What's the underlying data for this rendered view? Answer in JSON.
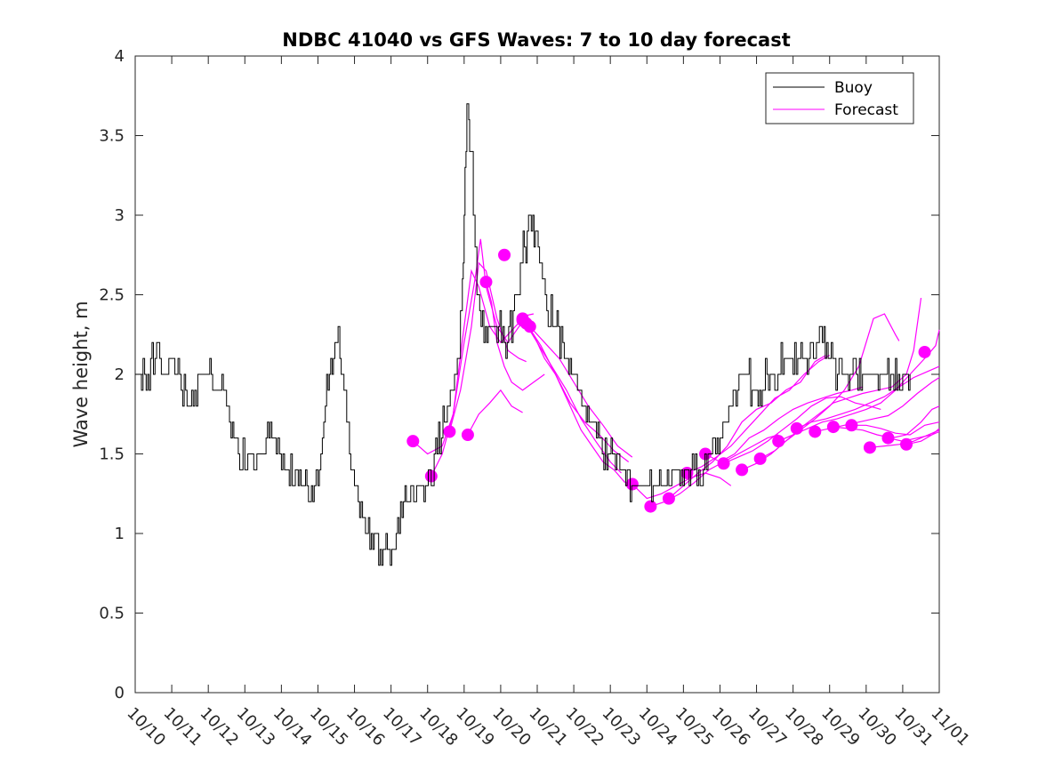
{
  "chart_data": {
    "type": "line",
    "title": "NDBC 41040 vs GFS Waves: 7 to 10 day forecast",
    "xlabel": "",
    "ylabel": "Wave height, m",
    "xlim": [
      10.0,
      32.0
    ],
    "ylim": [
      0,
      4
    ],
    "x_tick_values": [
      10,
      11,
      12,
      13,
      14,
      15,
      16,
      17,
      18,
      19,
      20,
      21,
      22,
      23,
      24,
      25,
      26,
      27,
      28,
      29,
      30,
      31,
      32
    ],
    "x_tick_labels": [
      "10/10",
      "10/11",
      "10/12",
      "10/13",
      "10/14",
      "10/15",
      "10/16",
      "10/17",
      "10/18",
      "10/19",
      "10/20",
      "10/21",
      "10/22",
      "10/23",
      "10/24",
      "10/25",
      "10/26",
      "10/27",
      "10/28",
      "10/29",
      "10/30",
      "10/31",
      "11/01"
    ],
    "y_ticks": [
      0,
      0.5,
      1,
      1.5,
      2,
      2.5,
      3,
      3.5,
      4
    ],
    "y_tick_labels": [
      "0",
      "0.5",
      "1",
      "1.5",
      "2",
      "2.5",
      "3",
      "3.5",
      "4"
    ],
    "grid": false,
    "legend": {
      "position": "top-right",
      "entries": [
        "Buoy",
        "Forecast"
      ]
    },
    "colors": {
      "buoy": "#000000",
      "forecast": "#ff00ff"
    },
    "buoy": {
      "name": "Buoy",
      "points": [
        [
          10.0,
          2.0
        ],
        [
          10.3,
          2.0
        ],
        [
          10.5,
          2.1
        ],
        [
          10.8,
          2.0
        ],
        [
          11.0,
          2.1
        ],
        [
          11.3,
          1.9
        ],
        [
          11.5,
          1.8
        ],
        [
          11.8,
          2.0
        ],
        [
          12.0,
          2.0
        ],
        [
          12.2,
          1.9
        ],
        [
          12.5,
          1.9
        ],
        [
          12.7,
          1.6
        ],
        [
          12.9,
          1.5
        ],
        [
          13.0,
          1.4
        ],
        [
          13.2,
          1.5
        ],
        [
          13.5,
          1.5
        ],
        [
          13.7,
          1.6
        ],
        [
          13.9,
          1.5
        ],
        [
          14.0,
          1.4
        ],
        [
          14.3,
          1.35
        ],
        [
          14.5,
          1.3
        ],
        [
          14.7,
          1.25
        ],
        [
          14.9,
          1.3
        ],
        [
          15.0,
          1.4
        ],
        [
          15.2,
          1.8
        ],
        [
          15.35,
          2.05
        ],
        [
          15.5,
          2.25
        ],
        [
          15.6,
          2.1
        ],
        [
          15.75,
          1.8
        ],
        [
          15.9,
          1.5
        ],
        [
          16.0,
          1.3
        ],
        [
          16.1,
          1.2
        ],
        [
          16.3,
          1.1
        ],
        [
          16.5,
          1.0
        ],
        [
          16.7,
          0.93
        ],
        [
          16.9,
          0.92
        ],
        [
          17.1,
          0.95
        ],
        [
          17.3,
          1.1
        ],
        [
          17.5,
          1.25
        ],
        [
          17.7,
          1.3
        ],
        [
          17.9,
          1.25
        ],
        [
          18.1,
          1.4
        ],
        [
          18.3,
          1.55
        ],
        [
          18.5,
          1.75
        ],
        [
          18.7,
          1.9
        ],
        [
          18.85,
          2.1
        ],
        [
          18.95,
          2.6
        ],
        [
          19.0,
          3.0
        ],
        [
          19.05,
          3.5
        ],
        [
          19.1,
          3.7
        ],
        [
          19.15,
          3.5
        ],
        [
          19.25,
          3.0
        ],
        [
          19.35,
          2.5
        ],
        [
          19.5,
          2.3
        ],
        [
          19.7,
          2.25
        ],
        [
          19.9,
          2.3
        ],
        [
          20.1,
          2.2
        ],
        [
          20.3,
          2.3
        ],
        [
          20.5,
          2.6
        ],
        [
          20.65,
          2.8
        ],
        [
          20.8,
          2.95
        ],
        [
          20.95,
          2.85
        ],
        [
          21.1,
          2.65
        ],
        [
          21.3,
          2.4
        ],
        [
          21.5,
          2.3
        ],
        [
          21.7,
          2.2
        ],
        [
          21.9,
          2.05
        ],
        [
          22.1,
          1.9
        ],
        [
          22.3,
          1.8
        ],
        [
          22.5,
          1.7
        ],
        [
          22.7,
          1.6
        ],
        [
          22.9,
          1.5
        ],
        [
          23.1,
          1.45
        ],
        [
          23.3,
          1.4
        ],
        [
          23.5,
          1.35
        ],
        [
          23.8,
          1.3
        ],
        [
          24.0,
          1.25
        ],
        [
          24.3,
          1.3
        ],
        [
          24.6,
          1.35
        ],
        [
          24.9,
          1.4
        ],
        [
          25.2,
          1.45
        ],
        [
          25.5,
          1.4
        ],
        [
          25.8,
          1.5
        ],
        [
          26.0,
          1.6
        ],
        [
          26.2,
          1.75
        ],
        [
          26.4,
          1.9
        ],
        [
          26.6,
          2.0
        ],
        [
          26.8,
          1.95
        ],
        [
          27.0,
          1.9
        ],
        [
          27.2,
          1.95
        ],
        [
          27.5,
          2.0
        ],
        [
          27.8,
          2.1
        ],
        [
          28.0,
          2.05
        ],
        [
          28.3,
          2.1
        ],
        [
          28.6,
          2.2
        ],
        [
          28.8,
          2.3
        ],
        [
          29.0,
          2.1
        ],
        [
          29.3,
          2.0
        ],
        [
          29.6,
          1.95
        ],
        [
          29.9,
          2.0
        ],
        [
          30.2,
          2.0
        ],
        [
          30.5,
          1.95
        ],
        [
          30.8,
          1.95
        ],
        [
          31.0,
          2.0
        ],
        [
          31.2,
          2.0
        ]
      ]
    },
    "forecast_lines": [
      [
        [
          17.6,
          1.58
        ],
        [
          18.0,
          1.5
        ],
        [
          18.4,
          1.55
        ],
        [
          18.7,
          1.75
        ],
        [
          19.0,
          2.3
        ],
        [
          19.2,
          2.65
        ],
        [
          19.4,
          2.55
        ],
        [
          19.7,
          2.3
        ],
        [
          20.0,
          2.2
        ],
        [
          20.4,
          2.3
        ],
        [
          20.7,
          2.37
        ],
        [
          20.9,
          2.38
        ]
      ],
      [
        [
          18.1,
          1.36
        ],
        [
          18.4,
          1.5
        ],
        [
          18.7,
          1.75
        ],
        [
          19.0,
          2.2
        ],
        [
          19.3,
          2.6
        ],
        [
          19.45,
          2.85
        ],
        [
          19.6,
          2.55
        ],
        [
          19.9,
          2.3
        ],
        [
          20.2,
          2.2
        ],
        [
          20.5,
          2.3
        ],
        [
          20.8,
          2.35
        ]
      ],
      [
        [
          18.6,
          1.64
        ],
        [
          18.9,
          1.9
        ],
        [
          19.2,
          2.3
        ],
        [
          19.4,
          2.7
        ],
        [
          19.6,
          2.65
        ],
        [
          19.9,
          2.35
        ],
        [
          20.2,
          2.15
        ],
        [
          20.5,
          2.1
        ],
        [
          20.7,
          2.08
        ]
      ],
      [
        [
          19.1,
          1.62
        ],
        [
          19.4,
          1.75
        ],
        [
          19.7,
          1.82
        ],
        [
          20.0,
          1.9
        ],
        [
          20.3,
          1.8
        ],
        [
          20.6,
          1.76
        ]
      ],
      [
        [
          19.6,
          2.58
        ],
        [
          19.75,
          2.45
        ],
        [
          19.9,
          2.2
        ],
        [
          20.1,
          2.05
        ],
        [
          20.3,
          1.95
        ],
        [
          20.6,
          1.9
        ],
        [
          20.9,
          1.95
        ],
        [
          21.2,
          2.0
        ]
      ],
      [
        [
          20.1,
          2.75
        ]
      ],
      [
        [
          20.6,
          2.34
        ],
        [
          20.9,
          2.25
        ],
        [
          21.2,
          2.1
        ],
        [
          21.5,
          2.0
        ],
        [
          21.8,
          1.85
        ],
        [
          22.2,
          1.65
        ],
        [
          22.5,
          1.55
        ],
        [
          22.8,
          1.45
        ],
        [
          23.1,
          1.4
        ],
        [
          23.4,
          1.32
        ]
      ],
      [
        [
          20.6,
          2.35
        ],
        [
          21.0,
          2.2
        ],
        [
          21.4,
          2.05
        ],
        [
          21.8,
          1.9
        ],
        [
          22.2,
          1.72
        ],
        [
          22.6,
          1.58
        ],
        [
          23.0,
          1.45
        ],
        [
          23.3,
          1.38
        ]
      ],
      [
        [
          20.7,
          2.32
        ],
        [
          21.1,
          2.18
        ],
        [
          21.5,
          2.0
        ],
        [
          21.9,
          1.82
        ],
        [
          22.3,
          1.7
        ],
        [
          22.7,
          1.62
        ],
        [
          23.1,
          1.52
        ],
        [
          23.5,
          1.45
        ]
      ],
      [
        [
          20.8,
          2.3
        ],
        [
          21.2,
          2.2
        ],
        [
          21.6,
          2.1
        ],
        [
          22.0,
          1.95
        ],
        [
          22.4,
          1.8
        ],
        [
          22.8,
          1.68
        ],
        [
          23.2,
          1.55
        ],
        [
          23.6,
          1.48
        ]
      ],
      [
        [
          23.6,
          1.31
        ],
        [
          24.0,
          1.22
        ],
        [
          24.4,
          1.25
        ],
        [
          24.8,
          1.3
        ],
        [
          25.2,
          1.35
        ],
        [
          25.6,
          1.38
        ],
        [
          26.0,
          1.35
        ],
        [
          26.3,
          1.3
        ]
      ],
      [
        [
          24.1,
          1.17
        ],
        [
          24.5,
          1.2
        ],
        [
          24.9,
          1.25
        ],
        [
          25.3,
          1.32
        ],
        [
          25.7,
          1.4
        ],
        [
          26.1,
          1.45
        ],
        [
          26.5,
          1.5
        ],
        [
          26.9,
          1.55
        ],
        [
          27.3,
          1.6
        ],
        [
          27.6,
          1.62
        ]
      ],
      [
        [
          24.6,
          1.22
        ],
        [
          25.0,
          1.3
        ],
        [
          25.4,
          1.38
        ],
        [
          25.8,
          1.45
        ],
        [
          26.2,
          1.55
        ],
        [
          26.6,
          1.7
        ],
        [
          27.0,
          1.78
        ],
        [
          27.4,
          1.82
        ],
        [
          27.8,
          1.9
        ],
        [
          28.2,
          1.95
        ],
        [
          28.6,
          2.08
        ],
        [
          28.9,
          2.12
        ]
      ],
      [
        [
          25.1,
          1.38
        ],
        [
          25.5,
          1.42
        ],
        [
          25.9,
          1.48
        ],
        [
          26.3,
          1.55
        ],
        [
          26.7,
          1.65
        ],
        [
          27.1,
          1.75
        ],
        [
          27.5,
          1.85
        ],
        [
          27.9,
          1.9
        ],
        [
          28.3,
          2.0
        ],
        [
          28.7,
          2.08
        ],
        [
          29.0,
          2.12
        ]
      ],
      [
        [
          25.6,
          1.5
        ],
        [
          26.0,
          1.45
        ],
        [
          26.4,
          1.5
        ],
        [
          26.8,
          1.6
        ],
        [
          27.2,
          1.65
        ],
        [
          27.6,
          1.72
        ],
        [
          28.0,
          1.78
        ],
        [
          28.4,
          1.82
        ],
        [
          28.8,
          1.85
        ],
        [
          29.2,
          1.88
        ],
        [
          29.6,
          1.9
        ],
        [
          29.9,
          1.92
        ]
      ],
      [
        [
          26.1,
          1.44
        ],
        [
          26.5,
          1.48
        ],
        [
          26.9,
          1.52
        ],
        [
          27.3,
          1.58
        ],
        [
          27.7,
          1.65
        ],
        [
          28.1,
          1.72
        ],
        [
          28.5,
          1.8
        ],
        [
          28.9,
          1.85
        ],
        [
          29.3,
          1.86
        ],
        [
          29.7,
          1.82
        ],
        [
          30.1,
          1.8
        ],
        [
          30.4,
          1.78
        ]
      ],
      [
        [
          26.6,
          1.4
        ],
        [
          27.0,
          1.44
        ],
        [
          27.4,
          1.5
        ],
        [
          27.8,
          1.58
        ],
        [
          28.2,
          1.65
        ],
        [
          28.6,
          1.72
        ],
        [
          29.0,
          1.8
        ],
        [
          29.4,
          1.9
        ],
        [
          29.8,
          2.05
        ],
        [
          30.0,
          2.2
        ],
        [
          30.2,
          2.35
        ],
        [
          30.5,
          2.38
        ],
        [
          30.8,
          2.25
        ],
        [
          30.9,
          2.21
        ]
      ],
      [
        [
          27.1,
          1.47
        ],
        [
          27.5,
          1.52
        ],
        [
          27.9,
          1.6
        ],
        [
          28.3,
          1.68
        ],
        [
          28.7,
          1.75
        ],
        [
          29.1,
          1.82
        ],
        [
          29.5,
          1.85
        ],
        [
          29.9,
          1.88
        ],
        [
          30.3,
          1.9
        ],
        [
          30.7,
          1.92
        ],
        [
          31.1,
          2.0
        ],
        [
          31.3,
          2.15
        ],
        [
          31.5,
          2.48
        ]
      ],
      [
        [
          27.6,
          1.58
        ],
        [
          28.0,
          1.62
        ],
        [
          28.4,
          1.66
        ],
        [
          28.8,
          1.7
        ],
        [
          29.2,
          1.72
        ],
        [
          29.6,
          1.75
        ],
        [
          30.0,
          1.78
        ],
        [
          30.4,
          1.82
        ],
        [
          30.8,
          1.9
        ],
        [
          31.2,
          2.0
        ],
        [
          31.6,
          2.1
        ],
        [
          31.9,
          2.18
        ],
        [
          32.0,
          2.28
        ]
      ],
      [
        [
          28.1,
          1.66
        ],
        [
          28.5,
          1.7
        ],
        [
          28.9,
          1.72
        ],
        [
          29.3,
          1.75
        ],
        [
          29.7,
          1.78
        ],
        [
          30.1,
          1.82
        ],
        [
          30.5,
          1.86
        ],
        [
          30.9,
          1.92
        ],
        [
          31.3,
          1.98
        ],
        [
          31.7,
          2.02
        ],
        [
          32.0,
          2.05
        ]
      ],
      [
        [
          28.6,
          1.64
        ],
        [
          29.0,
          1.66
        ],
        [
          29.4,
          1.68
        ],
        [
          29.8,
          1.7
        ],
        [
          30.2,
          1.72
        ],
        [
          30.6,
          1.74
        ],
        [
          31.0,
          1.8
        ],
        [
          31.4,
          1.88
        ],
        [
          31.8,
          1.95
        ],
        [
          32.0,
          1.98
        ]
      ],
      [
        [
          29.1,
          1.67
        ],
        [
          29.5,
          1.66
        ],
        [
          29.9,
          1.65
        ],
        [
          30.3,
          1.62
        ],
        [
          30.7,
          1.6
        ],
        [
          31.1,
          1.62
        ],
        [
          31.5,
          1.7
        ],
        [
          31.8,
          1.78
        ],
        [
          32.0,
          1.8
        ]
      ],
      [
        [
          29.6,
          1.68
        ],
        [
          30.0,
          1.68
        ],
        [
          30.4,
          1.66
        ],
        [
          30.8,
          1.63
        ],
        [
          31.2,
          1.62
        ],
        [
          31.6,
          1.68
        ],
        [
          32.0,
          1.7
        ]
      ],
      [
        [
          30.1,
          1.54
        ],
        [
          30.5,
          1.55
        ],
        [
          30.9,
          1.56
        ],
        [
          31.3,
          1.58
        ],
        [
          31.7,
          1.62
        ],
        [
          32.0,
          1.65
        ]
      ],
      [
        [
          30.6,
          1.6
        ],
        [
          31.0,
          1.58
        ],
        [
          31.4,
          1.6
        ],
        [
          31.8,
          1.62
        ],
        [
          32.0,
          1.66
        ]
      ],
      [
        [
          31.1,
          1.56
        ],
        [
          31.5,
          1.58
        ],
        [
          31.8,
          1.62
        ],
        [
          32.0,
          1.64
        ]
      ],
      [
        [
          31.6,
          2.14
        ]
      ]
    ]
  }
}
